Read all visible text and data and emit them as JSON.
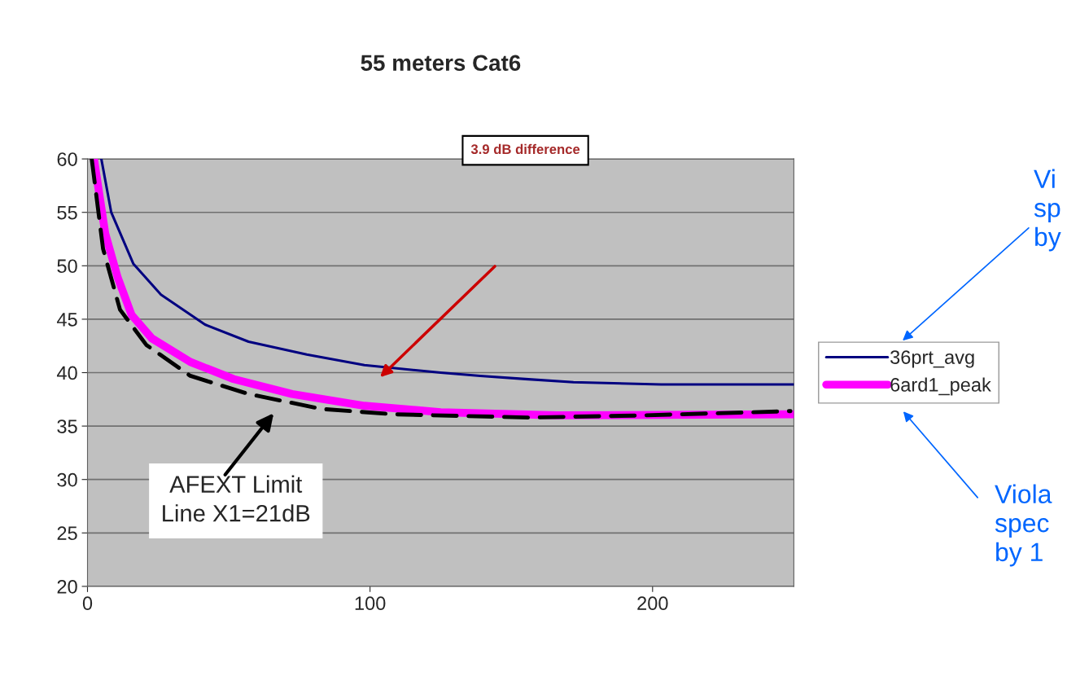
{
  "chart_data": {
    "type": "line",
    "title": "55 meters Cat6",
    "series": [
      {
        "name": "36prt_avg",
        "color": "#000080",
        "line_style": "solid",
        "x": [
          4.9,
          8.4,
          16.2,
          26,
          41.6,
          57,
          77.6,
          98,
          125,
          139,
          155,
          172,
          203,
          250
        ],
        "values": [
          60,
          55,
          50.2,
          47.3,
          44.5,
          42.9,
          41.7,
          40.7,
          40.0,
          39.7,
          39.4,
          39.1,
          38.9,
          38.9
        ]
      },
      {
        "name": "6ard1_peak",
        "color": "#ff00ff",
        "line_style": "solid",
        "x": [
          2.3,
          6.3,
          10.7,
          15.6,
          22.8,
          36.4,
          51.7,
          72.4,
          98,
          125,
          166,
          250
        ],
        "values": [
          60,
          53,
          48.9,
          45.4,
          43.2,
          41.0,
          39.4,
          38.0,
          36.9,
          36.3,
          36.0,
          36.1
        ]
      },
      {
        "color": "#000000",
        "line_style": "dashed",
        "x": [
          1.5,
          5.5,
          11.5,
          20.8,
          36.4,
          57,
          83,
          108.6,
          156,
          197,
          248.8
        ],
        "values": [
          60,
          51.6,
          45.9,
          42.6,
          39.7,
          38.0,
          36.6,
          36.1,
          35.8,
          36.0,
          36.4
        ]
      }
    ],
    "xlim": [
      0,
      250
    ],
    "xticks": [
      0,
      100,
      200
    ],
    "ylim": [
      20,
      60
    ],
    "yticks": [
      20,
      25,
      30,
      35,
      40,
      45,
      50,
      55,
      60
    ],
    "grid": "y",
    "legend": "right",
    "marker": "none",
    "annotations": [
      "3.9 dB difference",
      "AFEXT Limit\nLine X1=21dB",
      "Vi\nsp\nby",
      "Viola\nspec\nby 1"
    ]
  }
}
